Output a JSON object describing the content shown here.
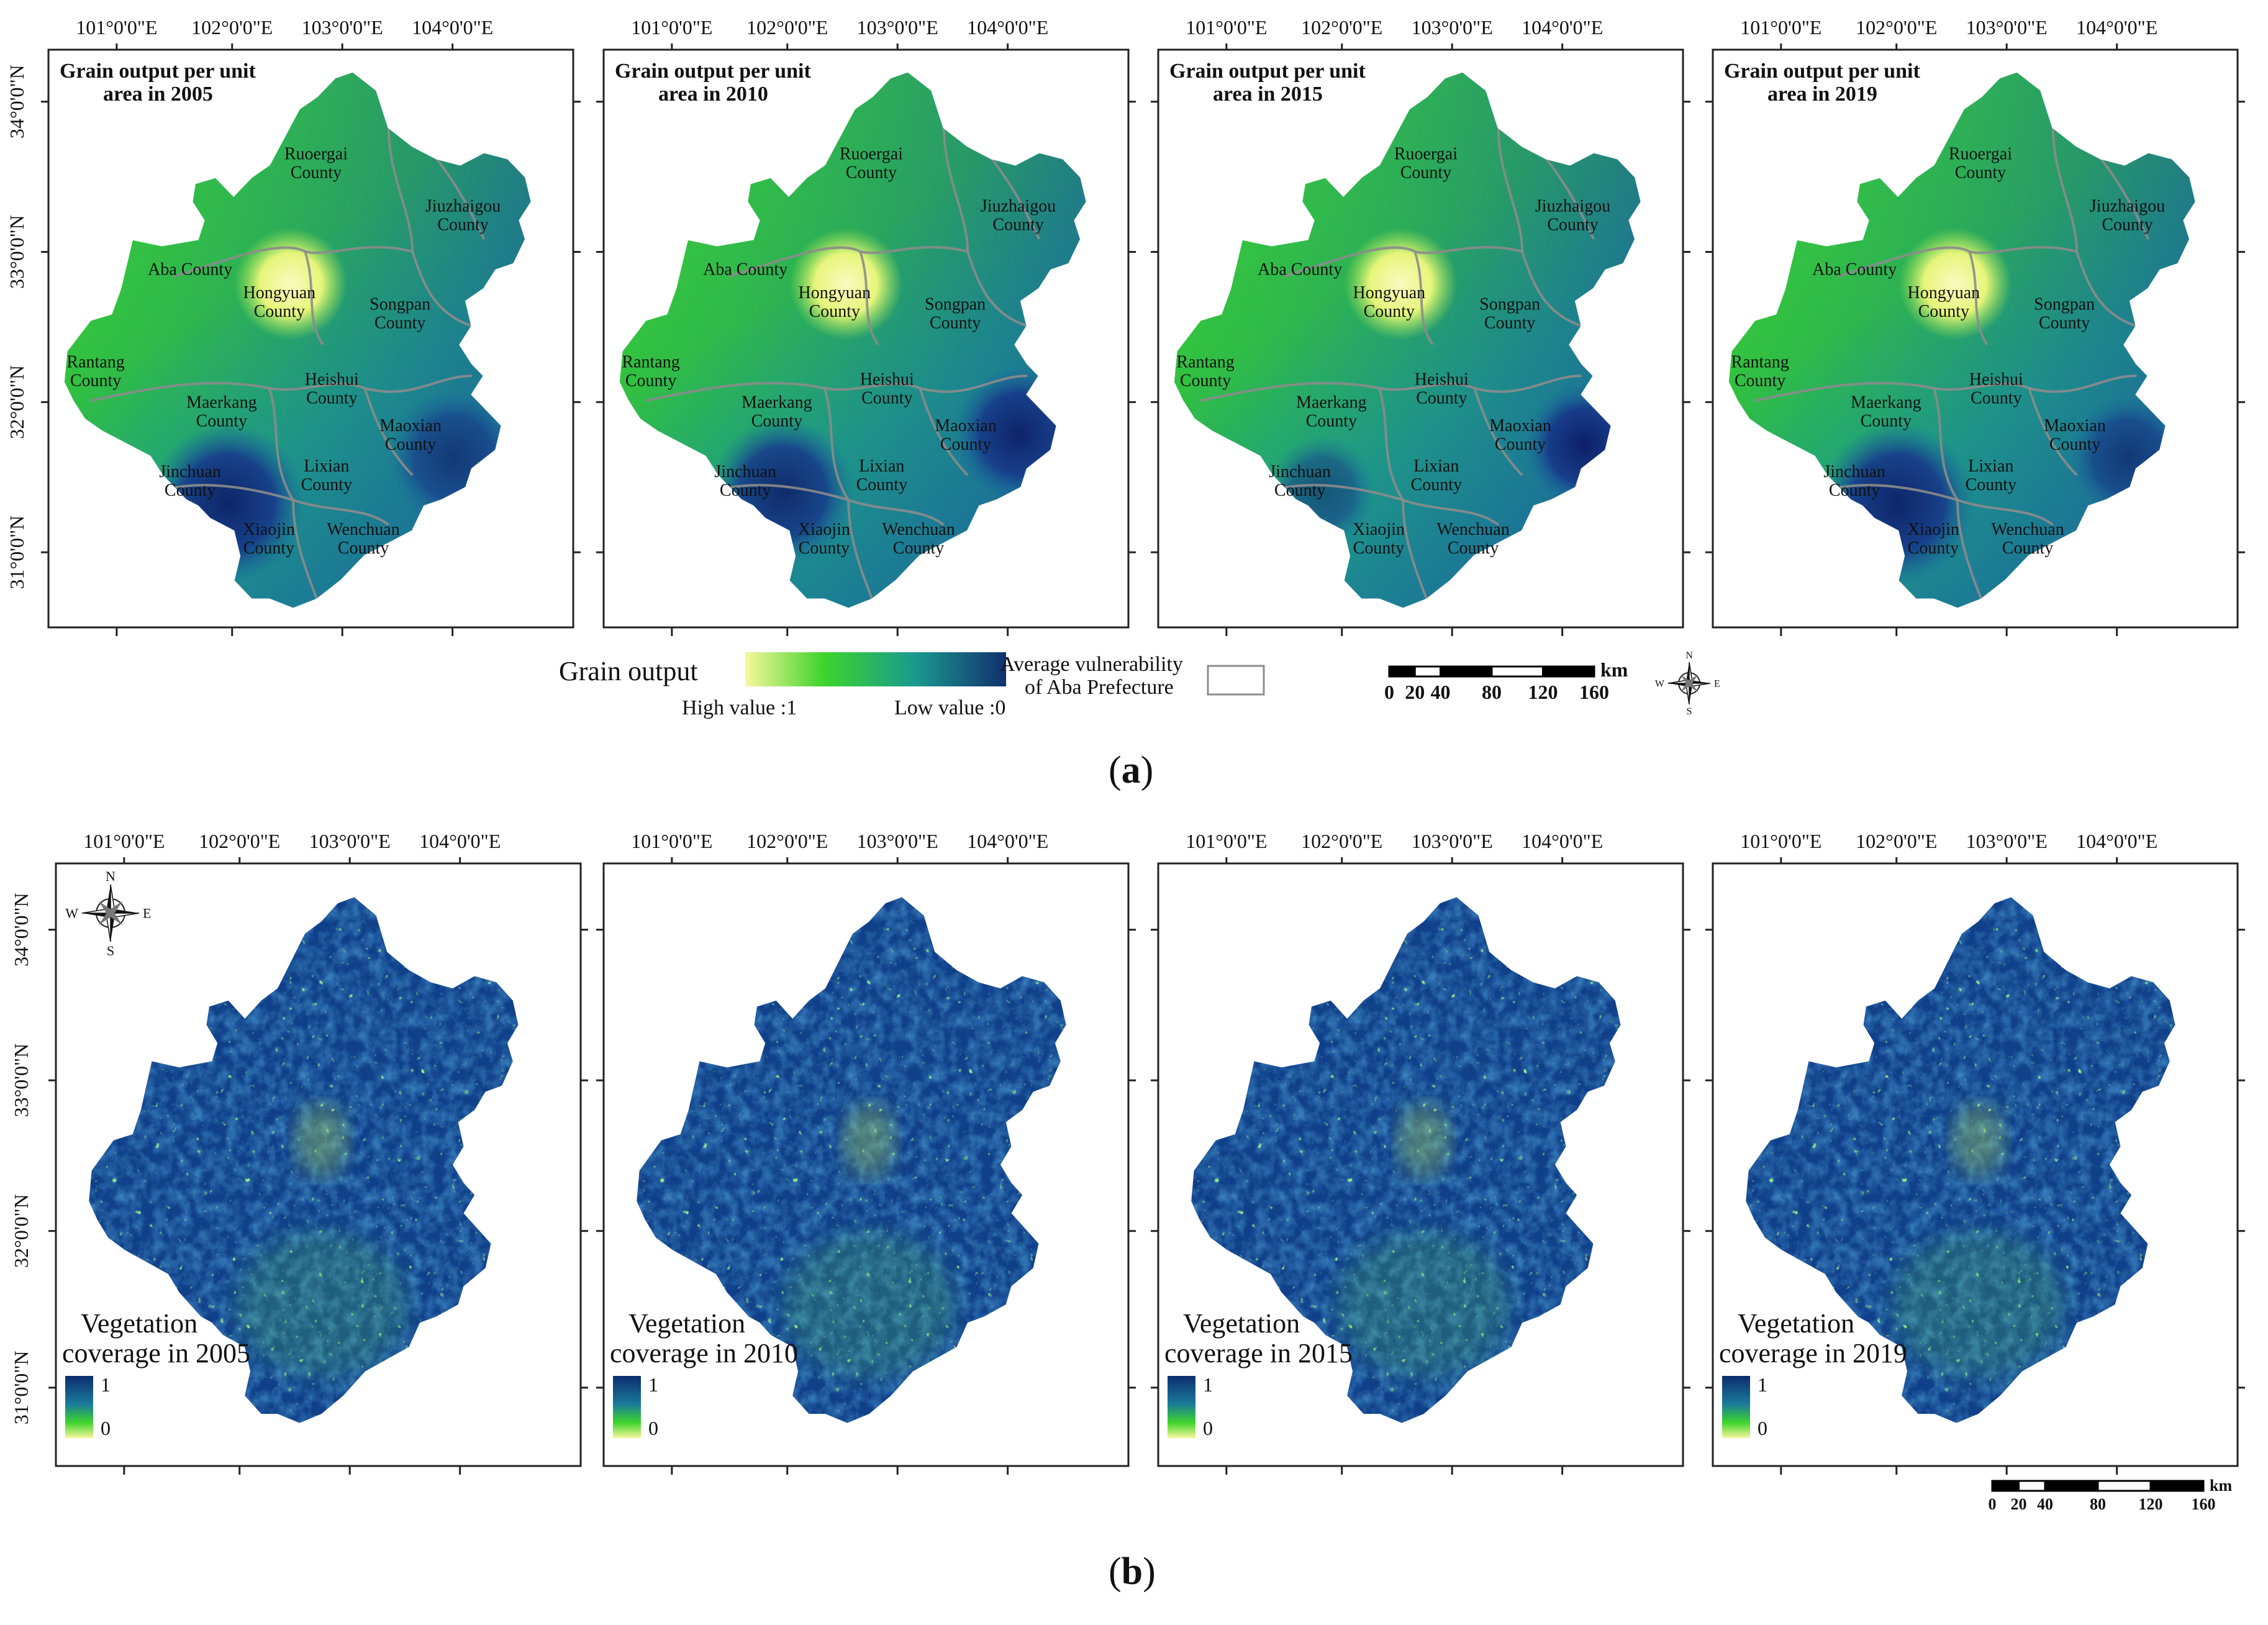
{
  "panel_a": {
    "label": "a",
    "years": [
      "2005",
      "2010",
      "2015",
      "2019"
    ],
    "title_line1": "Grain output per unit",
    "title_line2_prefix": "area in ",
    "lon_labels": [
      "101°0'0\"E",
      "102°0'0\"E",
      "103°0'0\"E",
      "104°0'0\"E"
    ],
    "lat_labels": [
      "34°0'0\"N",
      "33°0'0\"N",
      "32°0'0\"N",
      "31°0'0\"N"
    ],
    "counties": [
      {
        "name": [
          "Ruoergai",
          "County"
        ]
      },
      {
        "name": [
          "Jiuzhaigou",
          "County"
        ]
      },
      {
        "name": [
          "Aba County"
        ]
      },
      {
        "name": [
          "Hongyuan",
          "County"
        ]
      },
      {
        "name": [
          "Songpan",
          "County"
        ]
      },
      {
        "name": [
          "Rantang",
          "County"
        ]
      },
      {
        "name": [
          "Heishui",
          "County"
        ]
      },
      {
        "name": [
          "Maerkang",
          "County"
        ]
      },
      {
        "name": [
          "Maoxian",
          "County"
        ]
      },
      {
        "name": [
          "Jinchuan",
          "County"
        ]
      },
      {
        "name": [
          "Lixian",
          "County"
        ]
      },
      {
        "name": [
          "Xiaojin",
          "County"
        ]
      },
      {
        "name": [
          "Wenchuan",
          "County"
        ]
      }
    ],
    "legend": {
      "title": "Grain output",
      "high_label": "High value :1",
      "low_label": "Low value :0",
      "boundary_label_line1": "Average vulnerability",
      "boundary_label_line2": "of Aba Prefecture",
      "gradient_colors": [
        "#f7f79c",
        "#3dd42b",
        "#1a9a8e",
        "#12306e"
      ]
    },
    "scale_bar": {
      "unit": "km",
      "ticks": [
        "0",
        "20",
        "40",
        "80",
        "120",
        "160"
      ]
    }
  },
  "panel_b": {
    "label": "b",
    "years": [
      "2005",
      "2010",
      "2015",
      "2019"
    ],
    "title_line1": "Vegetation",
    "title_line2_prefix": "coverage in ",
    "legend_max": "1",
    "legend_min": "0",
    "gradient_colors": [
      "#0c2c6e",
      "#1a7a9a",
      "#3dd42b",
      "#f7f79c"
    ],
    "lon_labels": [
      "101°0'0\"E",
      "102°0'0\"E",
      "103°0'0\"E",
      "104°0'0\"E"
    ],
    "lat_labels": [
      "34°0'0\"N",
      "33°0'0\"N",
      "32°0'0\"N",
      "31°0'0\"N"
    ],
    "scale_bar": {
      "unit": "km",
      "ticks": [
        "0",
        "20",
        "40",
        "80",
        "120",
        "160"
      ]
    }
  },
  "compass": {
    "n": "N",
    "s": "S",
    "e": "E",
    "w": "W"
  },
  "colors": {
    "frame": "#222222",
    "boundary": "#8c8c8c"
  }
}
